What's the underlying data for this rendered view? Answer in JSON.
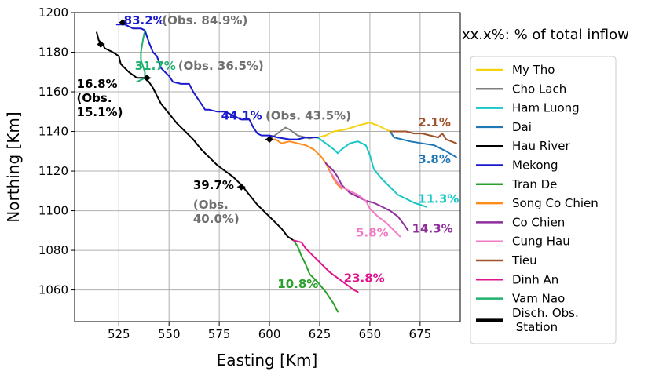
{
  "chart_data": {
    "type": "line",
    "xlabel": "Easting [Km]",
    "ylabel": "Northing [Km]",
    "xlim": [
      503,
      695
    ],
    "ylim": [
      1044,
      1200
    ],
    "xticks": [
      525,
      550,
      575,
      600,
      625,
      650,
      675
    ],
    "yticks": [
      1060,
      1080,
      1100,
      1120,
      1140,
      1160,
      1180,
      1200
    ],
    "grid": true,
    "legend_heading": "xx.x%: % of total inflow",
    "legend_position": "right",
    "series": [
      {
        "name": "My Tho",
        "color": "#f5d313",
        "points": [
          [
            624,
            1137
          ],
          [
            628,
            1138
          ],
          [
            632,
            1140
          ],
          [
            638,
            1141
          ],
          [
            644,
            1143
          ],
          [
            650,
            1144.5
          ],
          [
            654,
            1143
          ],
          [
            658,
            1141
          ],
          [
            660,
            1140
          ]
        ]
      },
      {
        "name": "Cho Lach",
        "color": "#808080",
        "points": [
          [
            600,
            1136
          ],
          [
            604,
            1139
          ],
          [
            608,
            1142
          ],
          [
            610,
            1141
          ],
          [
            614,
            1138
          ],
          [
            618,
            1137
          ],
          [
            620,
            1136.5
          ],
          [
            622,
            1137
          ],
          [
            624,
            1137
          ]
        ]
      },
      {
        "name": "Ham Luong",
        "color": "#17c7c7",
        "points": [
          [
            624,
            1137
          ],
          [
            628,
            1134
          ],
          [
            632,
            1131
          ],
          [
            634,
            1129
          ],
          [
            636,
            1131
          ],
          [
            640,
            1134
          ],
          [
            644,
            1135
          ],
          [
            648,
            1133
          ],
          [
            650,
            1128
          ],
          [
            652,
            1121
          ],
          [
            656,
            1116
          ],
          [
            660,
            1112
          ],
          [
            664,
            1108
          ],
          [
            668,
            1106
          ],
          [
            672,
            1104
          ],
          [
            678,
            1102
          ]
        ]
      },
      {
        "name": "Dai",
        "color": "#1f77b4",
        "points": [
          [
            660,
            1140
          ],
          [
            662,
            1137
          ],
          [
            666,
            1136
          ],
          [
            670,
            1135
          ],
          [
            676,
            1134
          ],
          [
            682,
            1133
          ],
          [
            688,
            1130
          ],
          [
            693,
            1127
          ]
        ]
      },
      {
        "name": "Hau River",
        "color": "#000000",
        "points": [
          [
            514,
            1190
          ],
          [
            515,
            1186
          ],
          [
            517,
            1184
          ],
          [
            518,
            1182
          ],
          [
            522,
            1180
          ],
          [
            525,
            1178
          ],
          [
            526,
            1174
          ],
          [
            530,
            1170
          ],
          [
            534,
            1167
          ],
          [
            538,
            1167
          ],
          [
            540,
            1165
          ],
          [
            542,
            1162
          ],
          [
            544,
            1158
          ],
          [
            546,
            1154
          ],
          [
            550,
            1149
          ],
          [
            554,
            1144
          ],
          [
            558,
            1140
          ],
          [
            562,
            1136
          ],
          [
            566,
            1131
          ],
          [
            570,
            1127
          ],
          [
            574,
            1123
          ],
          [
            578,
            1120
          ],
          [
            582,
            1117
          ],
          [
            586,
            1113
          ],
          [
            590,
            1108
          ],
          [
            594,
            1103
          ],
          [
            598,
            1099
          ],
          [
            602,
            1095
          ],
          [
            606,
            1091
          ],
          [
            609,
            1087
          ],
          [
            612,
            1085
          ]
        ]
      },
      {
        "name": "Mekong",
        "color": "#1a1acc",
        "points": [
          [
            524,
            1194
          ],
          [
            528,
            1194
          ],
          [
            530,
            1193
          ],
          [
            532,
            1192
          ],
          [
            536,
            1192
          ],
          [
            538,
            1191
          ],
          [
            540,
            1185
          ],
          [
            542,
            1180
          ],
          [
            544,
            1178
          ],
          [
            546,
            1172
          ],
          [
            548,
            1170
          ],
          [
            550,
            1168
          ],
          [
            552,
            1165
          ],
          [
            556,
            1164
          ],
          [
            560,
            1164
          ],
          [
            562,
            1160
          ],
          [
            564,
            1157
          ],
          [
            566,
            1154
          ],
          [
            568,
            1151
          ],
          [
            570,
            1151
          ],
          [
            574,
            1150
          ],
          [
            578,
            1150
          ],
          [
            582,
            1148
          ],
          [
            586,
            1146
          ],
          [
            590,
            1146
          ],
          [
            592,
            1142
          ],
          [
            594,
            1139
          ],
          [
            596,
            1138
          ],
          [
            600,
            1138
          ],
          [
            604,
            1137
          ],
          [
            610,
            1136
          ],
          [
            614,
            1136
          ],
          [
            618,
            1137
          ],
          [
            620,
            1137
          ],
          [
            622,
            1137
          ],
          [
            624,
            1137
          ]
        ]
      },
      {
        "name": "Tran De",
        "color": "#2ca02c",
        "points": [
          [
            612,
            1085
          ],
          [
            614,
            1082
          ],
          [
            616,
            1077
          ],
          [
            618,
            1073
          ],
          [
            620,
            1068
          ],
          [
            624,
            1064
          ],
          [
            628,
            1059
          ],
          [
            632,
            1053
          ],
          [
            634,
            1049
          ]
        ]
      },
      {
        "name": "Song Co Chien",
        "color": "#ff8c1a",
        "points": [
          [
            600,
            1136
          ],
          [
            603,
            1136
          ],
          [
            606,
            1134
          ],
          [
            610,
            1135
          ],
          [
            614,
            1134
          ],
          [
            618,
            1133
          ],
          [
            622,
            1131
          ],
          [
            624,
            1129
          ],
          [
            626,
            1127
          ],
          [
            628,
            1124
          ],
          [
            630,
            1120
          ],
          [
            632,
            1116
          ],
          [
            634,
            1113
          ],
          [
            636,
            1111
          ]
        ]
      },
      {
        "name": "Co Chien",
        "color": "#8e2f9b",
        "points": [
          [
            628,
            1124
          ],
          [
            632,
            1120
          ],
          [
            634,
            1117
          ],
          [
            636,
            1113
          ],
          [
            638,
            1111
          ],
          [
            640,
            1109
          ],
          [
            644,
            1107
          ],
          [
            648,
            1105
          ],
          [
            652,
            1104
          ],
          [
            656,
            1102
          ],
          [
            660,
            1100
          ],
          [
            664,
            1097
          ],
          [
            667,
            1093
          ],
          [
            669,
            1090
          ]
        ]
      },
      {
        "name": "Cung Hau",
        "color": "#f27ac4",
        "points": [
          [
            630,
            1120
          ],
          [
            634,
            1114
          ],
          [
            636,
            1112
          ],
          [
            640,
            1110
          ],
          [
            644,
            1108
          ],
          [
            648,
            1105
          ],
          [
            650,
            1101
          ],
          [
            654,
            1097
          ],
          [
            658,
            1094
          ],
          [
            662,
            1090
          ],
          [
            665,
            1087
          ]
        ]
      },
      {
        "name": "Tieu",
        "color": "#a0522d",
        "points": [
          [
            660,
            1140
          ],
          [
            664,
            1140
          ],
          [
            668,
            1140
          ],
          [
            672,
            1139
          ],
          [
            676,
            1139
          ],
          [
            680,
            1138
          ],
          [
            684,
            1137
          ],
          [
            686,
            1139
          ],
          [
            688,
            1136
          ],
          [
            693,
            1134
          ]
        ]
      },
      {
        "name": "Dinh An",
        "color": "#e0148c",
        "points": [
          [
            612,
            1085
          ],
          [
            616,
            1084
          ],
          [
            618,
            1081
          ],
          [
            622,
            1077
          ],
          [
            626,
            1073
          ],
          [
            630,
            1069
          ],
          [
            634,
            1066
          ],
          [
            638,
            1063
          ],
          [
            642,
            1060
          ],
          [
            644,
            1059
          ]
        ]
      },
      {
        "name": "Vam Nao",
        "color": "#20b070",
        "points": [
          [
            538,
            1191
          ],
          [
            537,
            1186
          ],
          [
            536,
            1180
          ],
          [
            536,
            1176
          ],
          [
            537,
            1173
          ],
          [
            538,
            1170
          ],
          [
            538,
            1167
          ],
          [
            536,
            1166
          ],
          [
            534,
            1165
          ]
        ]
      }
    ],
    "stations": [
      [
        516,
        1184
      ],
      [
        527,
        1195
      ],
      [
        539,
        1167
      ],
      [
        600,
        1136
      ],
      [
        586,
        1112
      ]
    ],
    "stations_legend": "Disch. Obs.\n Station",
    "annotations": [
      {
        "lines": [
          "83.2%"
        ],
        "color": "#1a1acc",
        "at": [
          527.5,
          1194
        ]
      },
      {
        "lines": [
          "(Obs. 84.9%)"
        ],
        "color": "#707070",
        "at": [
          546.5,
          1194
        ]
      },
      {
        "lines": [
          "31.7%"
        ],
        "color": "#20b070",
        "at": [
          533,
          1171
        ]
      },
      {
        "lines": [
          "(Obs. 36.5%)"
        ],
        "color": "#707070",
        "at": [
          554.5,
          1171
        ]
      },
      {
        "lines": [
          "16.8%",
          "(Obs.",
          "15.1%)"
        ],
        "color": "#000000",
        "at": [
          504,
          1162
        ]
      },
      {
        "lines": [
          "44.1%"
        ],
        "color": "#1a1acc",
        "at": [
          576,
          1146
        ]
      },
      {
        "lines": [
          "(Obs. 43.5%)"
        ],
        "color": "#707070",
        "at": [
          598,
          1146
        ]
      },
      {
        "lines": [
          "2.1%"
        ],
        "color": "#a0522d",
        "at": [
          674,
          1142.5
        ]
      },
      {
        "lines": [
          "3.8%"
        ],
        "color": "#1f77b4",
        "at": [
          674,
          1124
        ]
      },
      {
        "lines": [
          "11.3%"
        ],
        "color": "#17c7c7",
        "at": [
          674,
          1104
        ]
      },
      {
        "lines": [
          "39.7%"
        ],
        "color": "#000000",
        "at": [
          562,
          1111
        ]
      },
      {
        "lines": [
          "(Obs.",
          "40.0%)"
        ],
        "color": "#707070",
        "at": [
          562,
          1101
        ]
      },
      {
        "lines": [
          "5.8%"
        ],
        "color": "#f27ac4",
        "at": [
          643,
          1087
        ]
      },
      {
        "lines": [
          "14.3%"
        ],
        "color": "#8e2f9b",
        "at": [
          671,
          1089
        ]
      },
      {
        "lines": [
          "23.8%"
        ],
        "color": "#e0148c",
        "at": [
          637,
          1064
        ]
      },
      {
        "lines": [
          "10.8%"
        ],
        "color": "#2ca02c",
        "at": [
          604,
          1061
        ]
      }
    ]
  }
}
